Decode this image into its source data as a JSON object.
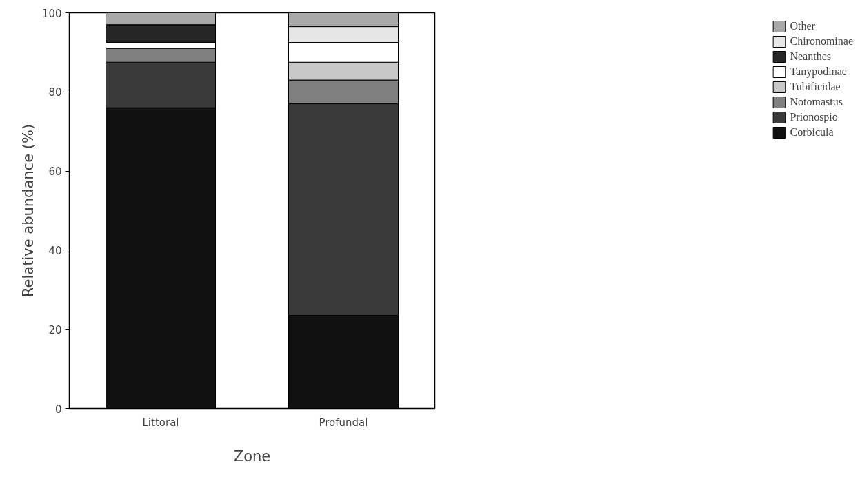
{
  "chart_data": {
    "type": "bar",
    "stacked": true,
    "xlabel": "Zone",
    "ylabel": "Relative abundance (%)",
    "categories": [
      "Littoral",
      "Profundal"
    ],
    "series": [
      {
        "name": "Corbicula",
        "color": "#111111",
        "values": [
          76,
          23.5
        ]
      },
      {
        "name": "Prionospio",
        "color": "#3a3a3a",
        "values": [
          11.5,
          53.5
        ]
      },
      {
        "name": "Notomastus",
        "color": "#808080",
        "values": [
          3.5,
          6
        ]
      },
      {
        "name": "Tubificidae",
        "color": "#c8c8c8",
        "values": [
          0,
          4.5
        ]
      },
      {
        "name": "Tanypodinae",
        "color": "#ffffff",
        "values": [
          1.5,
          5
        ]
      },
      {
        "name": "Neanthes",
        "color": "#262626",
        "values": [
          4.5,
          0
        ]
      },
      {
        "name": "Chironominae",
        "color": "#e6e6e6",
        "values": [
          0,
          4
        ]
      },
      {
        "name": "Other",
        "color": "#a8a8a8",
        "values": [
          3,
          3.5
        ]
      }
    ],
    "ylim": [
      0,
      100
    ],
    "yticks": [
      0,
      20,
      40,
      60,
      80,
      100
    ],
    "legend": "right"
  }
}
